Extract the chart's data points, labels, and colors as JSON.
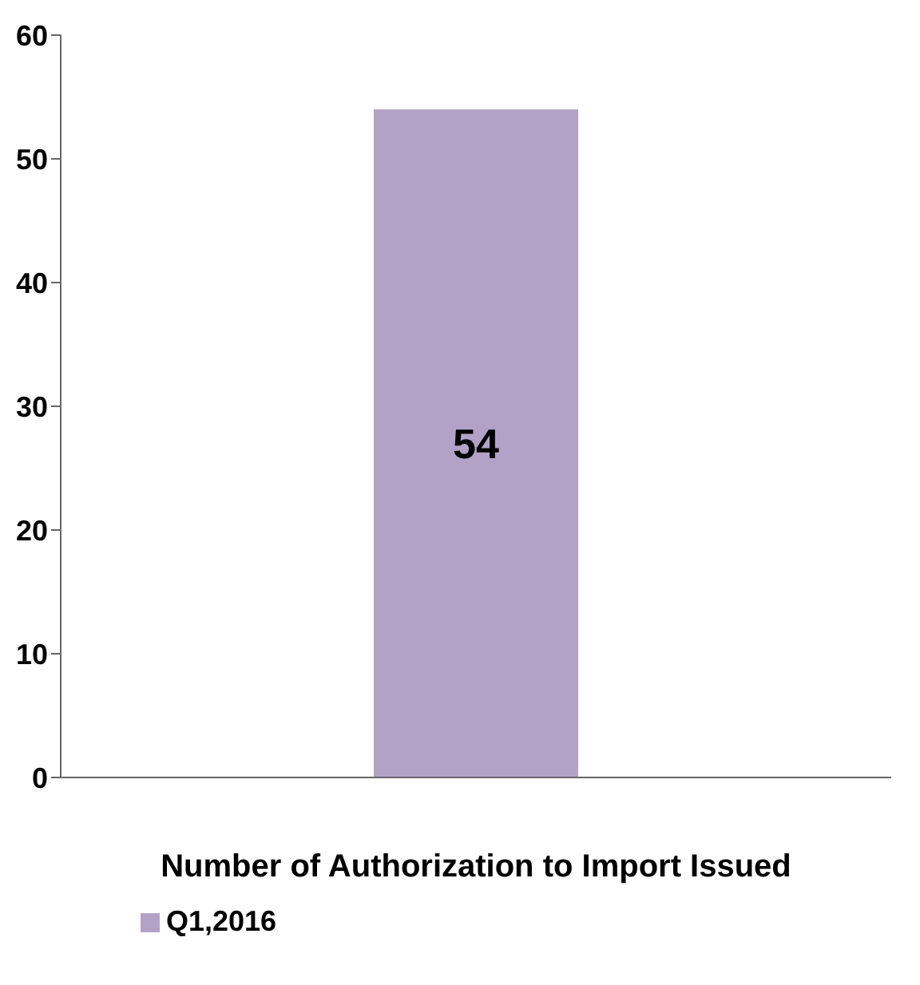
{
  "chart_data": {
    "type": "bar",
    "categories": [
      "Number of Authorization to Import Issued"
    ],
    "series": [
      {
        "name": "Q1,2016",
        "color": "#b3a2c7",
        "values": [
          54
        ]
      }
    ],
    "ylim": [
      0,
      60
    ],
    "yticks": [
      0,
      10,
      20,
      30,
      40,
      50,
      60
    ],
    "grid": false,
    "legend": "bottom left",
    "data_labels": true
  }
}
